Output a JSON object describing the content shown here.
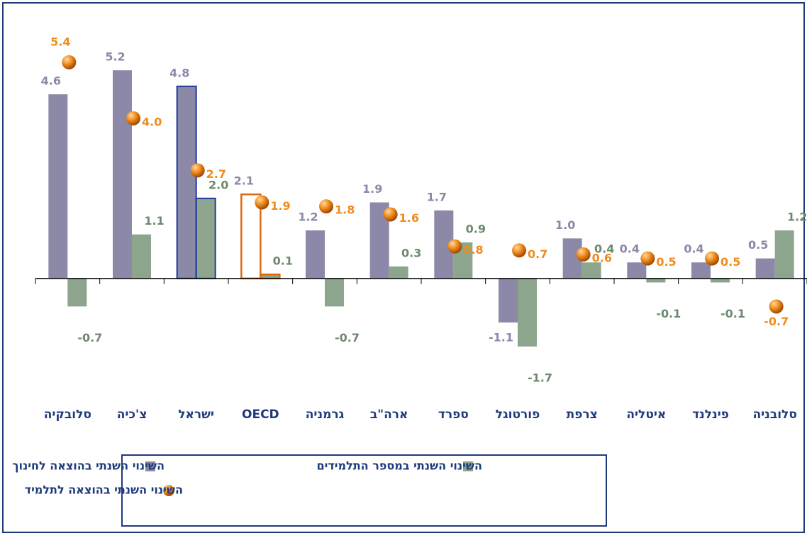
{
  "chart_data": {
    "type": "bar",
    "categories": [
      "סלובקיה",
      "צ'כיה",
      "ישראל",
      "OECD",
      "גרמניה",
      "ארה\"ב",
      "ספרד",
      "פורטוגל",
      "צרפת",
      "איטליה",
      "פינלנד",
      "סלובניה"
    ],
    "series": [
      {
        "name": "השינוי השנתי בהוצאה לחינוך",
        "color": "#8c88a8",
        "kind": "bar",
        "values": [
          4.6,
          5.2,
          4.8,
          2.1,
          1.2,
          1.9,
          1.7,
          -1.1,
          1.0,
          0.4,
          0.4,
          0.5
        ],
        "value_labels": [
          "4.6",
          "5.2",
          "4.8",
          "2.1",
          "1.2",
          "1.9",
          "1.7",
          "-1.1",
          "1.0",
          "0.4",
          "0.4",
          "0.5"
        ]
      },
      {
        "name": "השינוי השנתי במספר התלמידים",
        "color": "#8ca58c",
        "kind": "bar",
        "values": [
          -0.7,
          1.1,
          2.0,
          0.1,
          -0.7,
          0.3,
          0.9,
          -1.7,
          0.4,
          -0.1,
          -0.1,
          1.2
        ],
        "value_labels": [
          "-0.7",
          "1.1",
          "2.0",
          "0.1",
          "-0.7",
          "0.3",
          "0.9",
          "-1.7",
          "0.4",
          "-0.1",
          "-0.1",
          "1.2"
        ]
      },
      {
        "name": "השינוי השנתי בהוצאה לתלמיד",
        "color": "#f08c1e",
        "kind": "dot",
        "values": [
          5.4,
          4.0,
          2.7,
          1.9,
          1.8,
          1.6,
          0.8,
          0.7,
          0.6,
          0.5,
          0.5,
          -0.7
        ],
        "value_labels": [
          "5.4",
          "4.0",
          "2.7",
          "1.9",
          "1.8",
          "1.6",
          "0.8",
          "0.7",
          "0.6",
          "0.5",
          "0.5",
          "-0.7"
        ]
      }
    ],
    "ylim": [
      -2.5,
      6
    ]
  }
}
